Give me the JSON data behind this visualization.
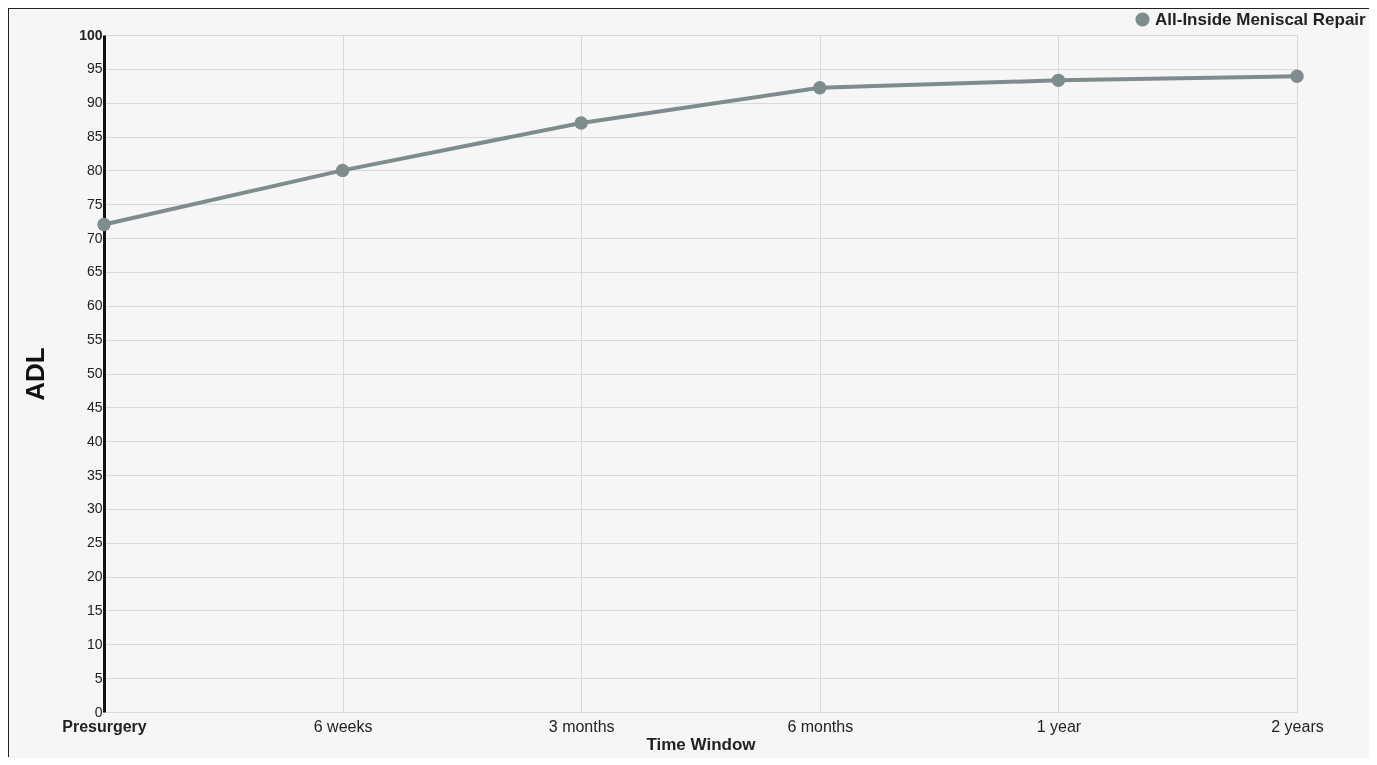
{
  "chart_data": {
    "type": "line",
    "xlabel": "Time Window",
    "ylabel": "ADL",
    "categories": [
      "Presurgery",
      "6 weeks",
      "3 months",
      "6 months",
      "1 year",
      "2 years"
    ],
    "series": [
      {
        "name": "All-Inside Meniscal Repair",
        "color": "#7f8c8d",
        "values": [
          72,
          80,
          87,
          92.2,
          93.3,
          93.9
        ]
      }
    ],
    "ylim": [
      0,
      100
    ],
    "yticks": [
      0,
      5,
      10,
      15,
      20,
      25,
      30,
      35,
      40,
      45,
      50,
      55,
      60,
      65,
      70,
      75,
      80,
      85,
      90,
      95,
      100
    ],
    "grid": true,
    "legend": "top right",
    "marker": "circle",
    "line_style": "solid"
  }
}
